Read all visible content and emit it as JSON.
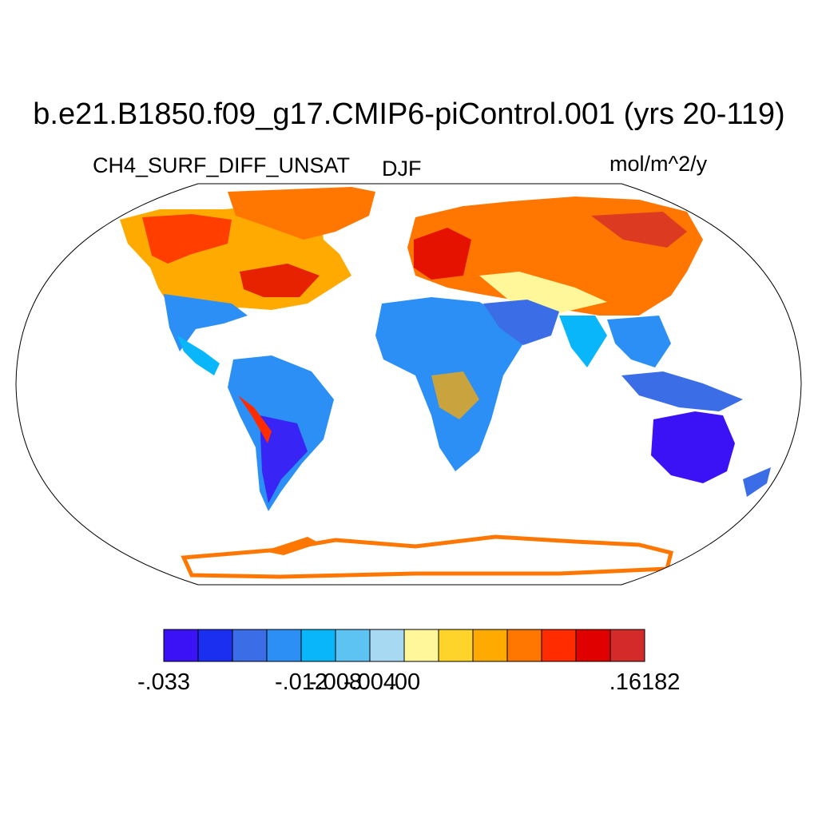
{
  "title": "b.e21.B1850.f09_g17.CMIP6-piControl.001 (yrs 20-119)",
  "variable": "CH4_SURF_DIFF_UNSAT",
  "season": "DJF",
  "units": "mol/m^2/y",
  "colorbar": {
    "colors": [
      "#3b12f5",
      "#1b2ff0",
      "#3a6de6",
      "#2b8ff5",
      "#08b6f9",
      "#5dc3f3",
      "#a8d9f2",
      "#fff79a",
      "#ffd42a",
      "#ffaa00",
      "#ff7700",
      "#ff2c00",
      "#e00000",
      "#d42a2a"
    ],
    "labels": [
      {
        "text": "-.033",
        "boundary": 0
      },
      {
        "text": "-.012",
        "boundary": 4
      },
      {
        "text": "-.008",
        "boundary": 5
      },
      {
        "text": "-.004",
        "boundary": 6
      },
      {
        "text": ".00",
        "boundary": 7
      },
      {
        "text": ".16182",
        "boundary": 14
      }
    ]
  }
}
